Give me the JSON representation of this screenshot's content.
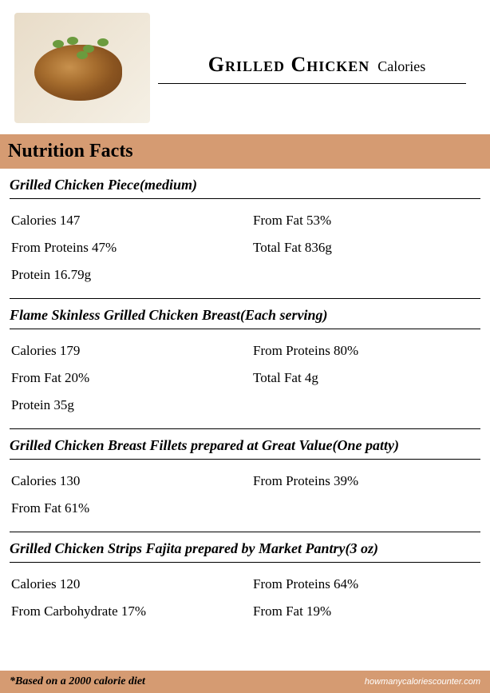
{
  "colors": {
    "bar_bg": "#d59b72",
    "text": "#000000",
    "page_bg": "#ffffff",
    "footer_link": "#ffffff"
  },
  "header": {
    "title_main": "Grilled Chicken",
    "title_sub": "Calories"
  },
  "section_title": "Nutrition Facts",
  "foods": [
    {
      "heading": "Grilled Chicken Piece(medium)",
      "rows": [
        {
          "left": "Calories 147",
          "right": "From Fat 53%"
        },
        {
          "left": "From Proteins 47%",
          "right": "Total Fat 836g"
        },
        {
          "left": "Protein 16.79g",
          "right": ""
        }
      ]
    },
    {
      "heading": "Flame Skinless Grilled Chicken Breast(Each serving)",
      "rows": [
        {
          "left": "Calories 179",
          "right": "From Proteins 80%"
        },
        {
          "left": "From Fat 20%",
          "right": "Total Fat 4g"
        },
        {
          "left": "Protein 35g",
          "right": ""
        }
      ]
    },
    {
      "heading": "Grilled Chicken Breast Fillets prepared at Great Value(One patty)",
      "rows": [
        {
          "left": "Calories 130",
          "right": "From Proteins 39%"
        },
        {
          "left": "From Fat 61%",
          "right": ""
        }
      ]
    },
    {
      "heading": "Grilled Chicken Strips Fajita prepared by Market Pantry(3 oz)",
      "rows": [
        {
          "left": "Calories 120",
          "right": "From Proteins 64%"
        },
        {
          "left": "From Carbohydrate 17%",
          "right": "From Fat 19%"
        }
      ]
    }
  ],
  "footer": {
    "note": "*Based on a 2000 calorie diet",
    "site": "howmanycaloriescounter.com"
  }
}
